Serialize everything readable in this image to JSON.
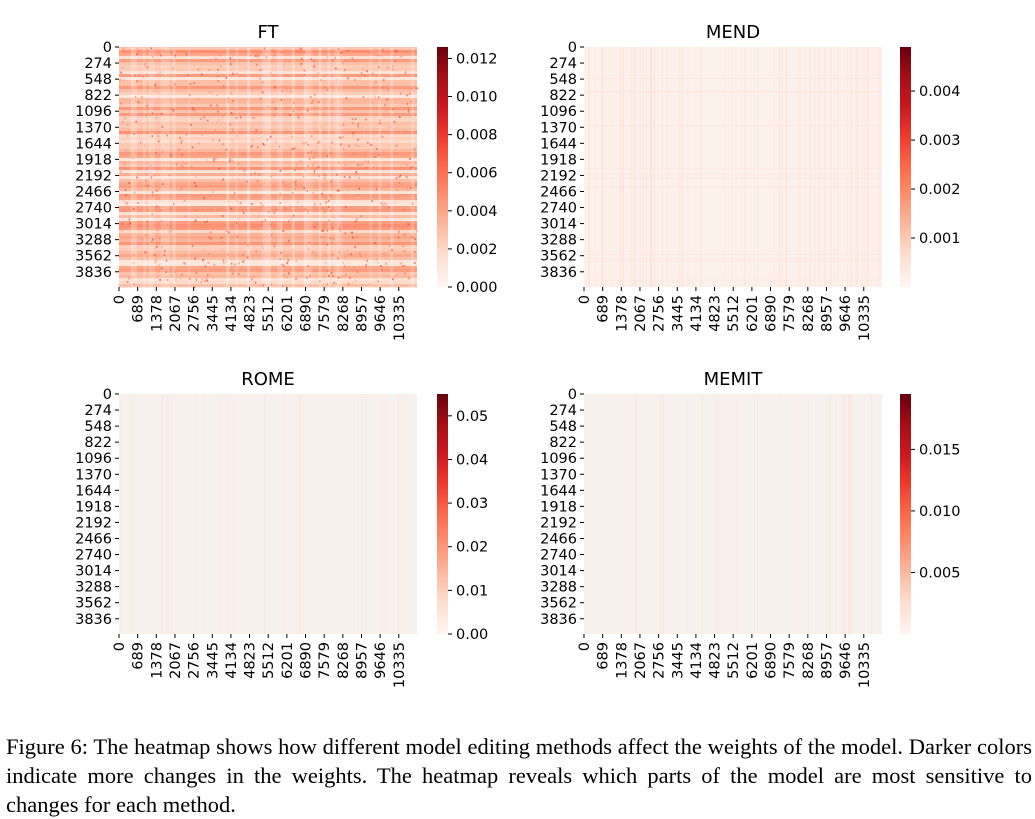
{
  "chart_data": [
    {
      "type": "heatmap",
      "title": "FT",
      "y_ticks": [
        "0",
        "274",
        "548",
        "822",
        "1096",
        "1370",
        "1644",
        "1918",
        "2192",
        "2466",
        "2740",
        "3014",
        "3288",
        "3562",
        "3836"
      ],
      "x_ticks": [
        "0",
        "689",
        "1378",
        "2067",
        "2756",
        "3445",
        "4134",
        "4823",
        "5512",
        "6201",
        "6890",
        "7579",
        "8268",
        "8957",
        "9646",
        "10335"
      ],
      "y_range": [
        0,
        4096
      ],
      "x_range": [
        0,
        11008
      ],
      "colorbar_ticks": [
        0.0,
        0.002,
        0.004,
        0.006,
        0.008,
        0.01,
        0.012
      ],
      "colorbar_tick_labels": [
        "0.000",
        "0.002",
        "0.004",
        "0.006",
        "0.008",
        "0.010",
        "0.012"
      ],
      "vmin": 0.0,
      "vmax": 0.0126,
      "colormap": "Reds",
      "intensity": "high"
    },
    {
      "type": "heatmap",
      "title": "MEND",
      "y_ticks": [
        "0",
        "274",
        "548",
        "822",
        "1096",
        "1370",
        "1644",
        "1918",
        "2192",
        "2466",
        "2740",
        "3014",
        "3288",
        "3562",
        "3836"
      ],
      "x_ticks": [
        "0",
        "689",
        "1378",
        "2067",
        "2756",
        "3445",
        "4134",
        "4823",
        "5512",
        "6201",
        "6890",
        "7579",
        "8268",
        "8957",
        "9646",
        "10335"
      ],
      "y_range": [
        0,
        4096
      ],
      "x_range": [
        0,
        11008
      ],
      "colorbar_ticks": [
        0.001,
        0.002,
        0.003,
        0.004
      ],
      "colorbar_tick_labels": [
        "0.001",
        "0.002",
        "0.003",
        "0.004"
      ],
      "vmin": 0.0,
      "vmax": 0.0049,
      "colormap": "Reds",
      "intensity": "low"
    },
    {
      "type": "heatmap",
      "title": "ROME",
      "y_ticks": [
        "0",
        "274",
        "548",
        "822",
        "1096",
        "1370",
        "1644",
        "1918",
        "2192",
        "2466",
        "2740",
        "3014",
        "3288",
        "3562",
        "3836"
      ],
      "x_ticks": [
        "0",
        "689",
        "1378",
        "2067",
        "2756",
        "3445",
        "4134",
        "4823",
        "5512",
        "6201",
        "6890",
        "7579",
        "8268",
        "8957",
        "9646",
        "10335"
      ],
      "y_range": [
        0,
        4096
      ],
      "x_range": [
        0,
        11008
      ],
      "colorbar_ticks": [
        0.0,
        0.01,
        0.02,
        0.03,
        0.04,
        0.05
      ],
      "colorbar_tick_labels": [
        "0.00",
        "0.01",
        "0.02",
        "0.03",
        "0.04",
        "0.05"
      ],
      "vmin": 0.0,
      "vmax": 0.055,
      "colormap": "Reds",
      "intensity": "very low"
    },
    {
      "type": "heatmap",
      "title": "MEMIT",
      "y_ticks": [
        "0",
        "274",
        "548",
        "822",
        "1096",
        "1370",
        "1644",
        "1918",
        "2192",
        "2466",
        "2740",
        "3014",
        "3288",
        "3562",
        "3836"
      ],
      "x_ticks": [
        "0",
        "689",
        "1378",
        "2067",
        "2756",
        "3445",
        "4134",
        "4823",
        "5512",
        "6201",
        "6890",
        "7579",
        "8268",
        "8957",
        "9646",
        "10335"
      ],
      "y_range": [
        0,
        4096
      ],
      "x_range": [
        0,
        11008
      ],
      "colorbar_ticks": [
        0.005,
        0.01,
        0.015
      ],
      "colorbar_tick_labels": [
        "0.005",
        "0.010",
        "0.015"
      ],
      "vmin": 0.0,
      "vmax": 0.0195,
      "colormap": "Reds",
      "intensity": "very low"
    }
  ],
  "caption": "Figure 6: The heatmap shows how different model editing methods affect the weights of the model. Darker colors indicate more changes in the weights. The heatmap reveals which parts of the model are most sensitive to changes for each method."
}
